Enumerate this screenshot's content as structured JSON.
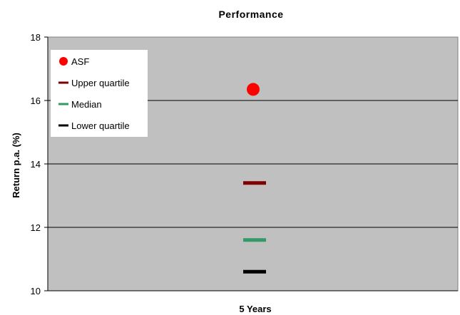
{
  "chart_data": {
    "type": "scatter",
    "title": "Performance",
    "xlabel": "",
    "ylabel": "Return p.a. (%)",
    "categories": [
      "5 Years"
    ],
    "ylim": [
      10,
      18
    ],
    "yticks": [
      10,
      12,
      14,
      16,
      18
    ],
    "grid": true,
    "legend_position": "top-left",
    "series": [
      {
        "name": "ASF",
        "marker": "circle",
        "color": "#ff0000",
        "values": [
          16.35
        ]
      },
      {
        "name": "Upper quartile",
        "marker": "dash",
        "color": "#7f0000",
        "values": [
          13.4
        ]
      },
      {
        "name": "Median",
        "marker": "dash",
        "color": "#339966",
        "values": [
          11.6
        ]
      },
      {
        "name": "Lower quartile",
        "marker": "dash",
        "color": "#000000",
        "values": [
          10.6
        ]
      }
    ]
  },
  "colors": {
    "plot_background": "#c0c0c0",
    "gridline": "#000000"
  }
}
